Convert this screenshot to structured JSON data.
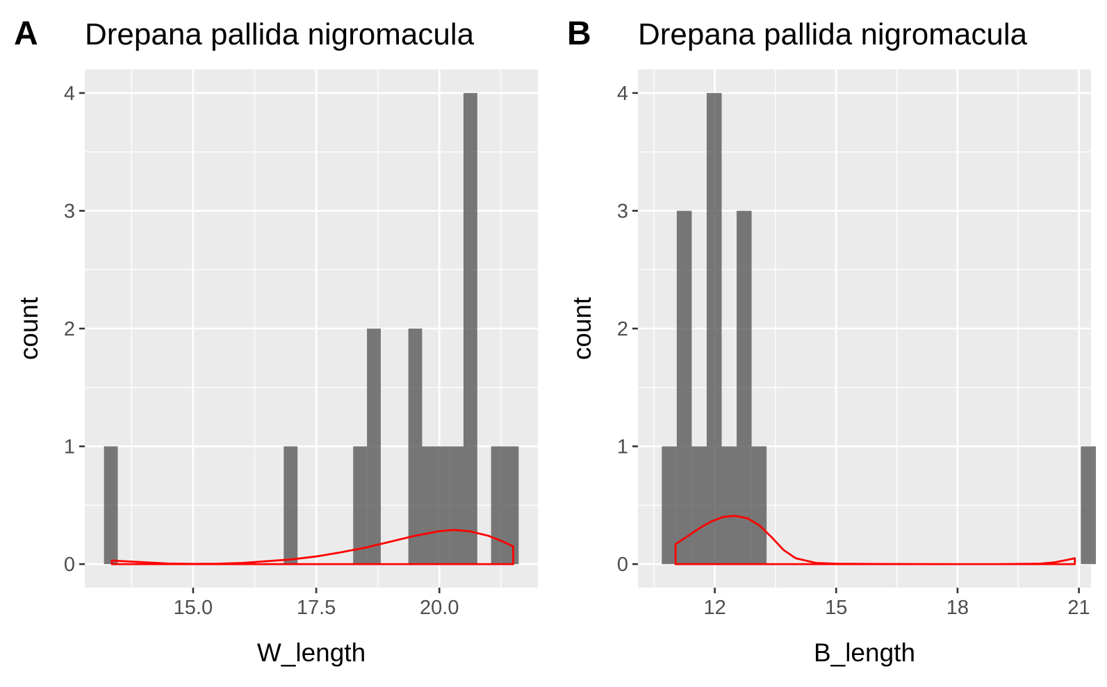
{
  "chart_data": [
    {
      "type": "bar",
      "panel_tag": "A",
      "title": "Drepana pallida nigromacula",
      "xlabel": "W_length",
      "ylabel": "count",
      "xlim": [
        12.8,
        22.0
      ],
      "ylim": [
        -0.2,
        4.2
      ],
      "xticks": [
        15.0,
        17.5,
        20.0
      ],
      "xtick_labels": [
        "15.0",
        "17.5",
        "20.0"
      ],
      "yticks": [
        0,
        1,
        2,
        3,
        4
      ],
      "ytick_labels": [
        "0",
        "1",
        "2",
        "3",
        "4"
      ],
      "grid": true,
      "bins": [
        {
          "x0": 13.19,
          "x1": 13.47,
          "count": 1
        },
        {
          "x0": 16.84,
          "x1": 17.12,
          "count": 1
        },
        {
          "x0": 18.25,
          "x1": 18.53,
          "count": 1
        },
        {
          "x0": 18.53,
          "x1": 18.81,
          "count": 2
        },
        {
          "x0": 19.37,
          "x1": 19.65,
          "count": 2
        },
        {
          "x0": 19.65,
          "x1": 19.93,
          "count": 1
        },
        {
          "x0": 19.93,
          "x1": 20.21,
          "count": 1
        },
        {
          "x0": 20.21,
          "x1": 20.49,
          "count": 1
        },
        {
          "x0": 20.49,
          "x1": 20.77,
          "count": 4
        },
        {
          "x0": 21.05,
          "x1": 21.33,
          "count": 1
        },
        {
          "x0": 21.33,
          "x1": 21.61,
          "count": 1
        }
      ],
      "density": {
        "color": "#ff0000",
        "x": [
          13.35,
          13.8,
          14.5,
          15.0,
          15.5,
          16.0,
          16.5,
          17.0,
          17.5,
          18.0,
          18.5,
          19.0,
          19.5,
          20.0,
          20.3,
          20.6,
          21.0,
          21.3,
          21.5
        ],
        "y": [
          0.03,
          0.02,
          0.005,
          0.002,
          0.003,
          0.01,
          0.025,
          0.04,
          0.065,
          0.1,
          0.14,
          0.19,
          0.24,
          0.28,
          0.29,
          0.28,
          0.24,
          0.19,
          0.15
        ]
      }
    },
    {
      "type": "bar",
      "panel_tag": "B",
      "title": "Drepana pallida nigromacula",
      "xlabel": "B_length",
      "ylabel": "count",
      "xlim": [
        10.1,
        21.3
      ],
      "ylim": [
        -0.2,
        4.2
      ],
      "xticks": [
        12,
        15,
        18,
        21
      ],
      "xtick_labels": [
        "12",
        "15",
        "18",
        "21"
      ],
      "yticks": [
        0,
        1,
        2,
        3,
        4
      ],
      "ytick_labels": [
        "0",
        "1",
        "2",
        "3",
        "4"
      ],
      "grid": true,
      "bins": [
        {
          "x0": 10.69,
          "x1": 11.06,
          "count": 1
        },
        {
          "x0": 11.06,
          "x1": 11.43,
          "count": 3
        },
        {
          "x0": 11.43,
          "x1": 11.8,
          "count": 1
        },
        {
          "x0": 11.8,
          "x1": 12.17,
          "count": 4
        },
        {
          "x0": 12.17,
          "x1": 12.54,
          "count": 1
        },
        {
          "x0": 12.54,
          "x1": 12.91,
          "count": 3
        },
        {
          "x0": 12.91,
          "x1": 13.28,
          "count": 1
        },
        {
          "x0": 21.05,
          "x1": 21.42,
          "count": 1
        }
      ],
      "density": {
        "color": "#ff0000",
        "x": [
          11.03,
          11.3,
          11.6,
          11.9,
          12.2,
          12.5,
          12.8,
          13.1,
          13.4,
          13.7,
          14.0,
          14.5,
          15.0,
          16.0,
          17.0,
          18.0,
          19.0,
          20.0,
          20.4,
          20.7,
          20.9
        ],
        "y": [
          0.17,
          0.23,
          0.3,
          0.36,
          0.4,
          0.41,
          0.39,
          0.33,
          0.23,
          0.12,
          0.05,
          0.01,
          0.003,
          0.001,
          0.0005,
          0.0,
          0.0,
          0.003,
          0.015,
          0.035,
          0.05
        ]
      }
    }
  ]
}
